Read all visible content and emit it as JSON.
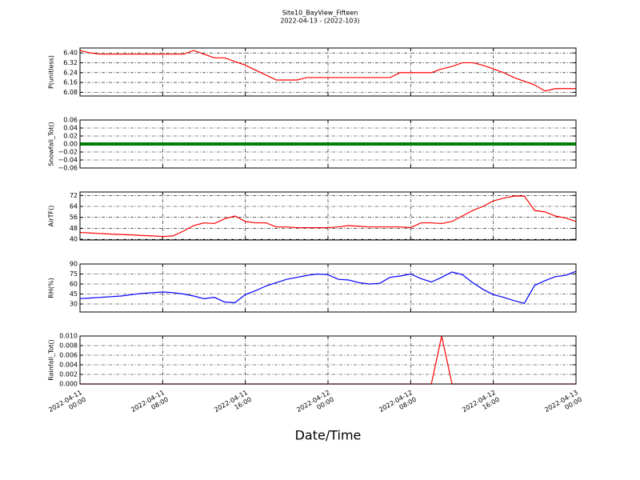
{
  "chart_data": {
    "type": "line",
    "title": "Site10_BayView_Fifteen",
    "subtitle": "2022-04-13 - (2022-103)",
    "xlabel": "Date/Time",
    "grid": true,
    "x": [
      "2022-04-11 00:00",
      "2022-04-11 01:00",
      "2022-04-11 02:00",
      "2022-04-11 03:00",
      "2022-04-11 04:00",
      "2022-04-11 05:00",
      "2022-04-11 06:00",
      "2022-04-11 07:00",
      "2022-04-11 08:00",
      "2022-04-11 09:00",
      "2022-04-11 10:00",
      "2022-04-11 11:00",
      "2022-04-11 12:00",
      "2022-04-11 13:00",
      "2022-04-11 14:00",
      "2022-04-11 15:00",
      "2022-04-11 16:00",
      "2022-04-11 17:00",
      "2022-04-11 18:00",
      "2022-04-11 19:00",
      "2022-04-11 20:00",
      "2022-04-11 21:00",
      "2022-04-11 22:00",
      "2022-04-11 23:00",
      "2022-04-12 00:00",
      "2022-04-12 01:00",
      "2022-04-12 02:00",
      "2022-04-12 03:00",
      "2022-04-12 04:00",
      "2022-04-12 05:00",
      "2022-04-12 06:00",
      "2022-04-12 07:00",
      "2022-04-12 08:00",
      "2022-04-12 09:00",
      "2022-04-12 10:00",
      "2022-04-12 11:00",
      "2022-04-12 12:00",
      "2022-04-12 13:00",
      "2022-04-12 14:00",
      "2022-04-12 15:00",
      "2022-04-12 16:00",
      "2022-04-12 17:00",
      "2022-04-12 18:00",
      "2022-04-12 19:00",
      "2022-04-12 20:00",
      "2022-04-12 21:00",
      "2022-04-12 22:00",
      "2022-04-12 23:00",
      "2022-04-13 00:00"
    ],
    "xlim": [
      "2022-04-11 00:00",
      "2022-04-13 00:00"
    ],
    "xticks": [
      {
        "value": "2022-04-11 00:00",
        "label": "2022-04-11\n00:00"
      },
      {
        "value": "2022-04-11 08:00",
        "label": "2022-04-11\n08:00"
      },
      {
        "value": "2022-04-11 16:00",
        "label": "2022-04-11\n16:00"
      },
      {
        "value": "2022-04-12 00:00",
        "label": "2022-04-12\n00:00"
      },
      {
        "value": "2022-04-12 08:00",
        "label": "2022-04-12\n08:00"
      },
      {
        "value": "2022-04-12 16:00",
        "label": "2022-04-12\n16:00"
      },
      {
        "value": "2022-04-13 00:00",
        "label": "2022-04-13\n00:00"
      }
    ],
    "panels": [
      {
        "ylabel": "P(unitless)",
        "ylim": [
          6.05,
          6.44
        ],
        "yticks": [
          {
            "value": 6.08,
            "label": "6.08"
          },
          6.16,
          6.24,
          6.32,
          {
            "value": 6.4,
            "label": "6.40"
          }
        ],
        "series": [
          {
            "color": "#ff0000",
            "values": [
              6.42,
              6.4,
              6.39,
              6.39,
              6.39,
              6.39,
              6.39,
              6.39,
              6.39,
              6.39,
              6.39,
              6.42,
              6.39,
              6.36,
              6.36,
              6.33,
              6.3,
              6.26,
              6.22,
              6.18,
              6.18,
              6.18,
              6.2,
              6.2,
              6.2,
              6.2,
              6.2,
              6.2,
              6.2,
              6.2,
              6.2,
              6.24,
              6.24,
              6.24,
              6.24,
              6.27,
              6.29,
              6.32,
              6.32,
              6.3,
              6.27,
              6.24,
              6.2,
              6.17,
              6.14,
              6.09,
              6.11,
              6.11,
              6.11
            ]
          }
        ]
      },
      {
        "ylabel": "Snowfall_Tot()",
        "ylim": [
          -0.06,
          0.06
        ],
        "yticks": [
          {
            "value": -0.06,
            "label": "−0.06"
          },
          {
            "value": -0.04,
            "label": "−0.04"
          },
          {
            "value": -0.02,
            "label": "−0.02"
          },
          {
            "value": 0,
            "label": "0.00"
          },
          0.02,
          0.04,
          0.06
        ],
        "series": [
          {
            "color": "#008000",
            "values": [
              0,
              0,
              0,
              0,
              0,
              0,
              0,
              0,
              0,
              0,
              0,
              0,
              0,
              0,
              0,
              0,
              0,
              0,
              0,
              0,
              0,
              0,
              0,
              0,
              0,
              0,
              0,
              0,
              0,
              0,
              0,
              0,
              0,
              0,
              0,
              0,
              0,
              0,
              0,
              0,
              0,
              0,
              0,
              0,
              0,
              0,
              0,
              0,
              0
            ]
          }
        ]
      },
      {
        "ylabel": "AirTF()",
        "ylim": [
          39.5,
          74.5
        ],
        "yticks": [
          40,
          48,
          56,
          64,
          72
        ],
        "series": [
          {
            "color": "#ff0000",
            "values": [
              45,
              44.6,
              44.2,
              43.8,
              43.5,
              43.2,
              42.8,
              42.5,
              42,
              42.5,
              46,
              50,
              52,
              51.5,
              55,
              57,
              53,
              52,
              52,
              49,
              49,
              48.5,
              48.5,
              48.5,
              48.5,
              49,
              50,
              49.5,
              49,
              49,
              49,
              49,
              48.5,
              52,
              52,
              51.5,
              53,
              57,
              61,
              64,
              68,
              70,
              71.5,
              71.5,
              61,
              60,
              57,
              55.5,
              53
            ]
          }
        ]
      },
      {
        "ylabel": "RH(%)",
        "ylim": [
          18,
          90
        ],
        "yticks": [
          30,
          45,
          60,
          75,
          90
        ],
        "series": [
          {
            "color": "#0000ff",
            "values": [
              38,
              39,
              40,
              41,
              42,
              44,
              46,
              47,
              48,
              47,
              45,
              42,
              38,
              40,
              33,
              32,
              44,
              50,
              57,
              62,
              67,
              70,
              73,
              75,
              74,
              67,
              66,
              62,
              60,
              61,
              70,
              72,
              75,
              68,
              63,
              70,
              78,
              74,
              62,
              52,
              44,
              40,
              35,
              31,
              58,
              65,
              71,
              73,
              79
            ]
          }
        ]
      },
      {
        "ylabel": "Rainfall_Tot()",
        "ylim": [
          0,
          0.01
        ],
        "yticks": [
          {
            "value": 0,
            "label": "0.000"
          },
          0.002,
          0.004,
          0.006,
          0.008,
          {
            "value": 0.01,
            "label": "0.010"
          }
        ],
        "series": [
          {
            "color": "#ff0000",
            "values": [
              0,
              0,
              0,
              0,
              0,
              0,
              0,
              0,
              0,
              0,
              0,
              0,
              0,
              0,
              0,
              0,
              0,
              0,
              0,
              0,
              0,
              0,
              0,
              0,
              0,
              0,
              0,
              0,
              0,
              0,
              0,
              0,
              0,
              0,
              0,
              0.01,
              0,
              0,
              0,
              0,
              0,
              0,
              0,
              0,
              0,
              0,
              0,
              0,
              0
            ]
          }
        ]
      }
    ]
  }
}
